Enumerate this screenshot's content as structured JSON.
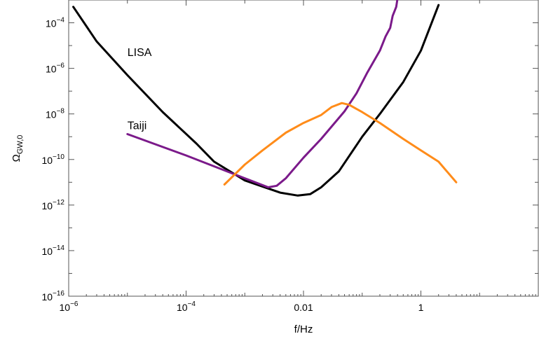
{
  "chart_data": {
    "type": "line",
    "title": "",
    "xlabel": "f/Hz",
    "ylabel": "Ω_GW,0",
    "ylabel_main": "Ω",
    "ylabel_sub": "GW,0",
    "x_scale": "log",
    "y_scale": "log",
    "xlim": [
      1e-06,
      100
    ],
    "ylim": [
      1e-16,
      0.001
    ],
    "grid": false,
    "x_ticks": [
      {
        "value": 1e-06,
        "base": "10",
        "exp": "−6"
      },
      {
        "value": 0.0001,
        "base": "10",
        "exp": "−4"
      },
      {
        "value": 0.01,
        "base": "0.01",
        "exp": ""
      },
      {
        "value": 1,
        "base": "1",
        "exp": ""
      }
    ],
    "y_ticks": [
      {
        "value": 1e-16,
        "base": "10",
        "exp": "−16"
      },
      {
        "value": 1e-14,
        "base": "10",
        "exp": "−14"
      },
      {
        "value": 1e-12,
        "base": "10",
        "exp": "−12"
      },
      {
        "value": 1e-10,
        "base": "10",
        "exp": "−10"
      },
      {
        "value": 1e-08,
        "base": "10",
        "exp": "−8"
      },
      {
        "value": 1e-06,
        "base": "10",
        "exp": "−6"
      },
      {
        "value": 0.0001,
        "base": "10",
        "exp": "−4"
      }
    ],
    "series": [
      {
        "name": "LISA",
        "color": "#000000",
        "label_at": {
          "x": 1e-05,
          "y": 2e-06
        },
        "points": [
          [
            1.2e-06,
            0.0005
          ],
          [
            3e-06,
            1.5e-05
          ],
          [
            1e-05,
            5e-07
          ],
          [
            4e-05,
            1.2e-08
          ],
          [
            0.00015,
            5e-10
          ],
          [
            0.0003,
            8e-11
          ],
          [
            0.001,
            1.2e-11
          ],
          [
            0.004,
            3.5e-12
          ],
          [
            0.008,
            2.6e-12
          ],
          [
            0.013,
            3e-12
          ],
          [
            0.02,
            6e-12
          ],
          [
            0.04,
            3e-11
          ],
          [
            0.1,
            1e-09
          ],
          [
            0.2,
            1e-08
          ],
          [
            0.5,
            2.5e-07
          ],
          [
            1,
            6e-06
          ],
          [
            2,
            0.0006
          ]
        ]
      },
      {
        "name": "Taiji",
        "color": "#7b1a8a",
        "label_at": {
          "x": 1e-05,
          "y": 1.2e-09
        },
        "points": [
          [
            1e-05,
            1.3e-09
          ],
          [
            0.0001,
            1.5e-10
          ],
          [
            0.001,
            1.5e-11
          ],
          [
            0.0025,
            6e-12
          ],
          [
            0.0035,
            7e-12
          ],
          [
            0.005,
            1.5e-11
          ],
          [
            0.01,
            1.2e-10
          ],
          [
            0.02,
            8e-10
          ],
          [
            0.05,
            1.3e-08
          ],
          [
            0.08,
            8e-08
          ],
          [
            0.12,
            6e-07
          ],
          [
            0.2,
            6e-06
          ],
          [
            0.25,
            2.5e-05
          ],
          [
            0.3,
            6e-05
          ],
          [
            0.33,
            0.0002
          ],
          [
            0.38,
            0.0005
          ],
          [
            0.4,
            0.0012
          ],
          [
            0.42,
            0.003
          ]
        ]
      },
      {
        "name": "",
        "color": "#ff8c1a",
        "points": [
          [
            0.00045,
            8e-12
          ],
          [
            0.001,
            6e-11
          ],
          [
            0.002,
            2.5e-10
          ],
          [
            0.005,
            1.5e-09
          ],
          [
            0.01,
            4e-09
          ],
          [
            0.02,
            9e-09
          ],
          [
            0.03,
            2e-08
          ],
          [
            0.045,
            3e-08
          ],
          [
            0.06,
            2.5e-08
          ],
          [
            0.1,
            1.2e-08
          ],
          [
            0.2,
            4e-09
          ],
          [
            0.5,
            8e-10
          ],
          [
            1,
            2.5e-10
          ],
          [
            2,
            8e-11
          ],
          [
            4,
            1e-11
          ]
        ]
      }
    ]
  }
}
